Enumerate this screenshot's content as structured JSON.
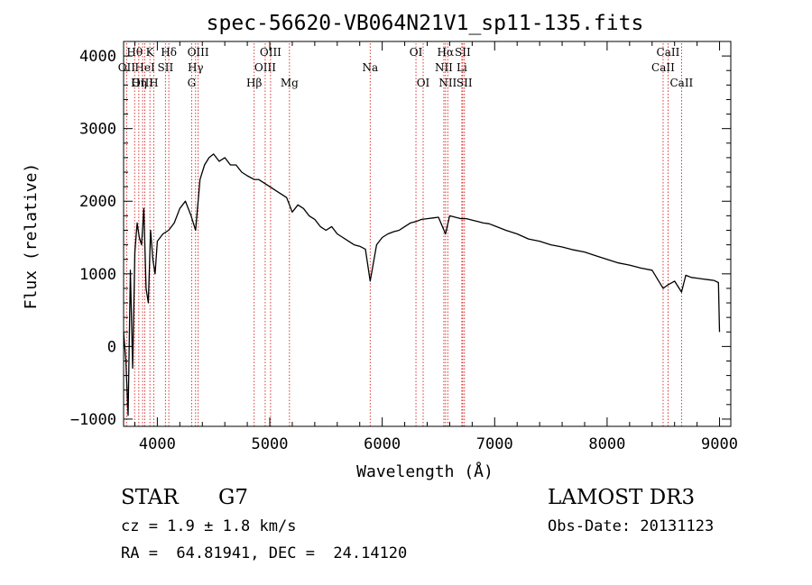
{
  "chart_data": {
    "type": "line",
    "title": "spec-56620-VB064N21V1_sp11-135.fits",
    "xlabel": "Wavelength (Å)",
    "ylabel": "Flux (relative)",
    "xlim": [
      3700,
      9100
    ],
    "ylim": [
      -1100,
      4200
    ],
    "xticks": [
      4000,
      5000,
      6000,
      7000,
      8000,
      9000
    ],
    "yticks": [
      -1000,
      0,
      1000,
      2000,
      3000,
      4000
    ],
    "xtick_labels": [
      "4000",
      "5000",
      "6000",
      "7000",
      "8000",
      "9000"
    ],
    "ytick_labels": [
      "−1000",
      "0",
      "1000",
      "2000",
      "3000",
      "4000"
    ],
    "series": [
      {
        "color": "#000000",
        "x": [
          3700,
          3720,
          3740,
          3760,
          3780,
          3800,
          3820,
          3840,
          3860,
          3880,
          3900,
          3920,
          3940,
          3960,
          3980,
          4000,
          4050,
          4100,
          4150,
          4200,
          4250,
          4300,
          4340,
          4380,
          4420,
          4460,
          4500,
          4550,
          4600,
          4650,
          4700,
          4750,
          4800,
          4861,
          4900,
          4950,
          5000,
          5050,
          5100,
          5150,
          5200,
          5250,
          5300,
          5350,
          5400,
          5450,
          5500,
          5550,
          5600,
          5650,
          5700,
          5750,
          5800,
          5850,
          5893,
          5950,
          6000,
          6050,
          6100,
          6150,
          6200,
          6250,
          6300,
          6350,
          6400,
          6450,
          6500,
          6563,
          6600,
          6650,
          6700,
          6750,
          6800,
          6850,
          6900,
          6950,
          7000,
          7100,
          7200,
          7300,
          7400,
          7500,
          7600,
          7700,
          7800,
          7900,
          8000,
          8100,
          8200,
          8300,
          8400,
          8498,
          8542,
          8600,
          8662,
          8700,
          8750,
          8800,
          8850,
          8900,
          8950,
          8990,
          9000
        ],
        "y": [
          200,
          -200,
          -950,
          1050,
          -300,
          1300,
          1700,
          1500,
          1400,
          1900,
          800,
          600,
          1600,
          1200,
          1000,
          1450,
          1550,
          1600,
          1700,
          1900,
          2000,
          1800,
          1600,
          2300,
          2500,
          2600,
          2650,
          2550,
          2600,
          2500,
          2500,
          2400,
          2350,
          2300,
          2300,
          2250,
          2200,
          2150,
          2100,
          2050,
          1850,
          1950,
          1900,
          1800,
          1750,
          1650,
          1600,
          1650,
          1550,
          1500,
          1450,
          1400,
          1380,
          1340,
          900,
          1400,
          1500,
          1550,
          1580,
          1600,
          1650,
          1700,
          1720,
          1750,
          1760,
          1770,
          1780,
          1550,
          1800,
          1780,
          1760,
          1760,
          1740,
          1720,
          1700,
          1690,
          1660,
          1600,
          1550,
          1480,
          1450,
          1400,
          1370,
          1330,
          1300,
          1250,
          1200,
          1150,
          1120,
          1080,
          1050,
          800,
          850,
          900,
          750,
          980,
          950,
          940,
          930,
          920,
          910,
          880,
          200
        ]
      }
    ],
    "spectral_lines": [
      {
        "name": "Hθ",
        "x": 3798,
        "row": 0
      },
      {
        "name": "OII",
        "x": 3727,
        "row": 1
      },
      {
        "name": "OIII",
        "x": 3869,
        "row": 2
      },
      {
        "name": "Hη",
        "x": 3835,
        "row": 2
      },
      {
        "name": "K",
        "x": 3934,
        "row": 0
      },
      {
        "name": "HeI",
        "x": 3889,
        "row": 1
      },
      {
        "name": "H",
        "x": 3968,
        "row": 2
      },
      {
        "name": "SII",
        "x": 4072,
        "row": 1
      },
      {
        "name": "Hδ",
        "x": 4102,
        "row": 0
      },
      {
        "name": "OIII",
        "x": 4363,
        "row": 0
      },
      {
        "name": "Hγ",
        "x": 4340,
        "row": 1
      },
      {
        "name": "G",
        "x": 4305,
        "row": 2
      },
      {
        "name": "OIII",
        "x": 5007,
        "row": 0
      },
      {
        "name": "OIII",
        "x": 4959,
        "row": 1
      },
      {
        "name": "Hβ",
        "x": 4861,
        "row": 2
      },
      {
        "name": "Mg",
        "x": 5175,
        "row": 2
      },
      {
        "name": "Na",
        "x": 5893,
        "row": 1
      },
      {
        "name": "OI",
        "x": 6300,
        "row": 0
      },
      {
        "name": "OI",
        "x": 6364,
        "row": 2
      },
      {
        "name": "Hα",
        "x": 6563,
        "row": 0
      },
      {
        "name": "SII",
        "x": 6716,
        "row": 0
      },
      {
        "name": "NII",
        "x": 6548,
        "row": 1
      },
      {
        "name": "Li",
        "x": 6708,
        "row": 1
      },
      {
        "name": "NII",
        "x": 6583,
        "row": 2
      },
      {
        "name": "SII",
        "x": 6731,
        "row": 2
      },
      {
        "name": "CaII",
        "x": 8542,
        "row": 0
      },
      {
        "name": "CaII",
        "x": 8498,
        "row": 1
      },
      {
        "name": "CaII",
        "x": 8662,
        "row": 2
      }
    ],
    "line_color": "#d62020"
  },
  "info": {
    "object_class": "STAR",
    "subclass": "G7",
    "cz": "cz = 1.9 ± 1.8 km/s",
    "coords": "RA =  64.81941, DEC =  24.14120",
    "survey": "LAMOST DR3",
    "obs_date": "Obs-Date: 20131123"
  }
}
